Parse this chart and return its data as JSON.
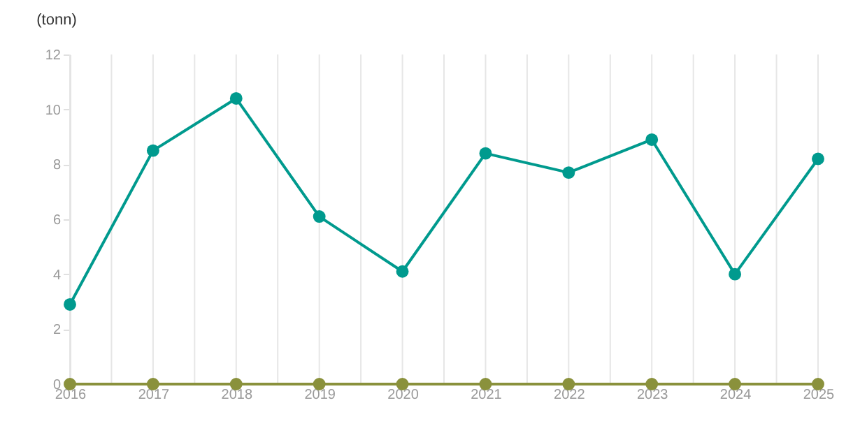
{
  "chart_data": {
    "type": "line",
    "ylabel": "(tonn)",
    "x": [
      2016,
      2017,
      2018,
      2019,
      2020,
      2021,
      2022,
      2023,
      2024,
      2025
    ],
    "series": [
      {
        "color": "#009a8e",
        "values": [
          2.9,
          8.5,
          10.4,
          6.1,
          4.1,
          8.4,
          7.7,
          8.9,
          4.0,
          8.2
        ]
      },
      {
        "color": "#8a913c",
        "values": [
          0,
          0,
          0,
          0,
          0,
          0,
          0,
          0,
          0,
          0
        ]
      }
    ],
    "xlim": [
      2016,
      2025
    ],
    "xticks": [
      2016,
      {
        "value": 2016.5,
        "label": null
      },
      2017,
      {
        "value": 2017.5,
        "label": null
      },
      2018,
      {
        "value": 2018.5,
        "label": null
      },
      2019,
      {
        "value": 2019.5,
        "label": null
      },
      2020,
      {
        "value": 2020.5,
        "label": null
      },
      2021,
      {
        "value": 2021.5,
        "label": null
      },
      2022,
      {
        "value": 2022.5,
        "label": null
      },
      2023,
      {
        "value": 2023.5,
        "label": null
      },
      2024,
      {
        "value": 2024.5,
        "label": null
      },
      2025
    ],
    "ylim": [
      0,
      12
    ],
    "yticks": [
      0,
      2,
      4,
      6,
      8,
      10,
      12
    ],
    "grid": "x",
    "marker": "circle",
    "line_style": "solid",
    "legend": false
  }
}
